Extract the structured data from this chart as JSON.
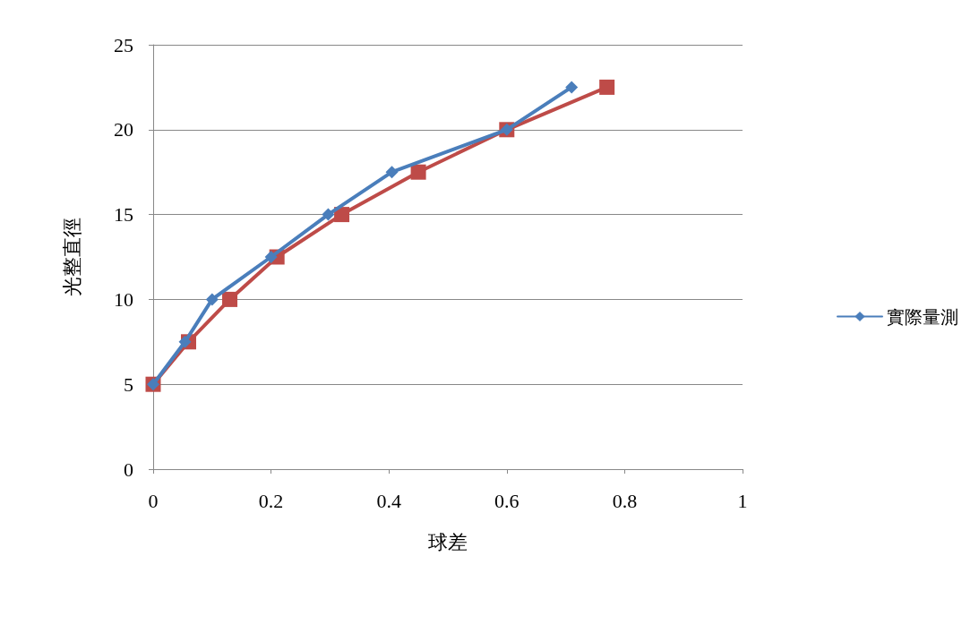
{
  "chart_data": {
    "type": "line",
    "xlabel": "球差",
    "ylabel": "光整直徑",
    "xlim": [
      0,
      1
    ],
    "xticks": [
      0,
      0.2,
      0.4,
      0.6,
      0.8,
      1
    ],
    "ylim": [
      0,
      25
    ],
    "yticks": [
      0,
      5,
      10,
      15,
      20,
      25
    ],
    "grid": "y",
    "legend": "right",
    "line_style": "solid",
    "series": [
      {
        "name": "實際量測",
        "color": "#4a7ebb",
        "marker": "diamond",
        "x": [
          0,
          0.054,
          0.1,
          0.2,
          0.297,
          0.405,
          0.6,
          0.71
        ],
        "values": [
          5,
          7.5,
          10,
          12.5,
          15,
          17.5,
          20,
          22.5
        ]
      },
      {
        "color": "#be4b48",
        "marker": "square",
        "x": [
          0,
          0.06,
          0.13,
          0.21,
          0.32,
          0.45,
          0.6,
          0.77
        ],
        "values": [
          5,
          7.5,
          10,
          12.5,
          15,
          17.5,
          20,
          22.5
        ]
      }
    ]
  }
}
